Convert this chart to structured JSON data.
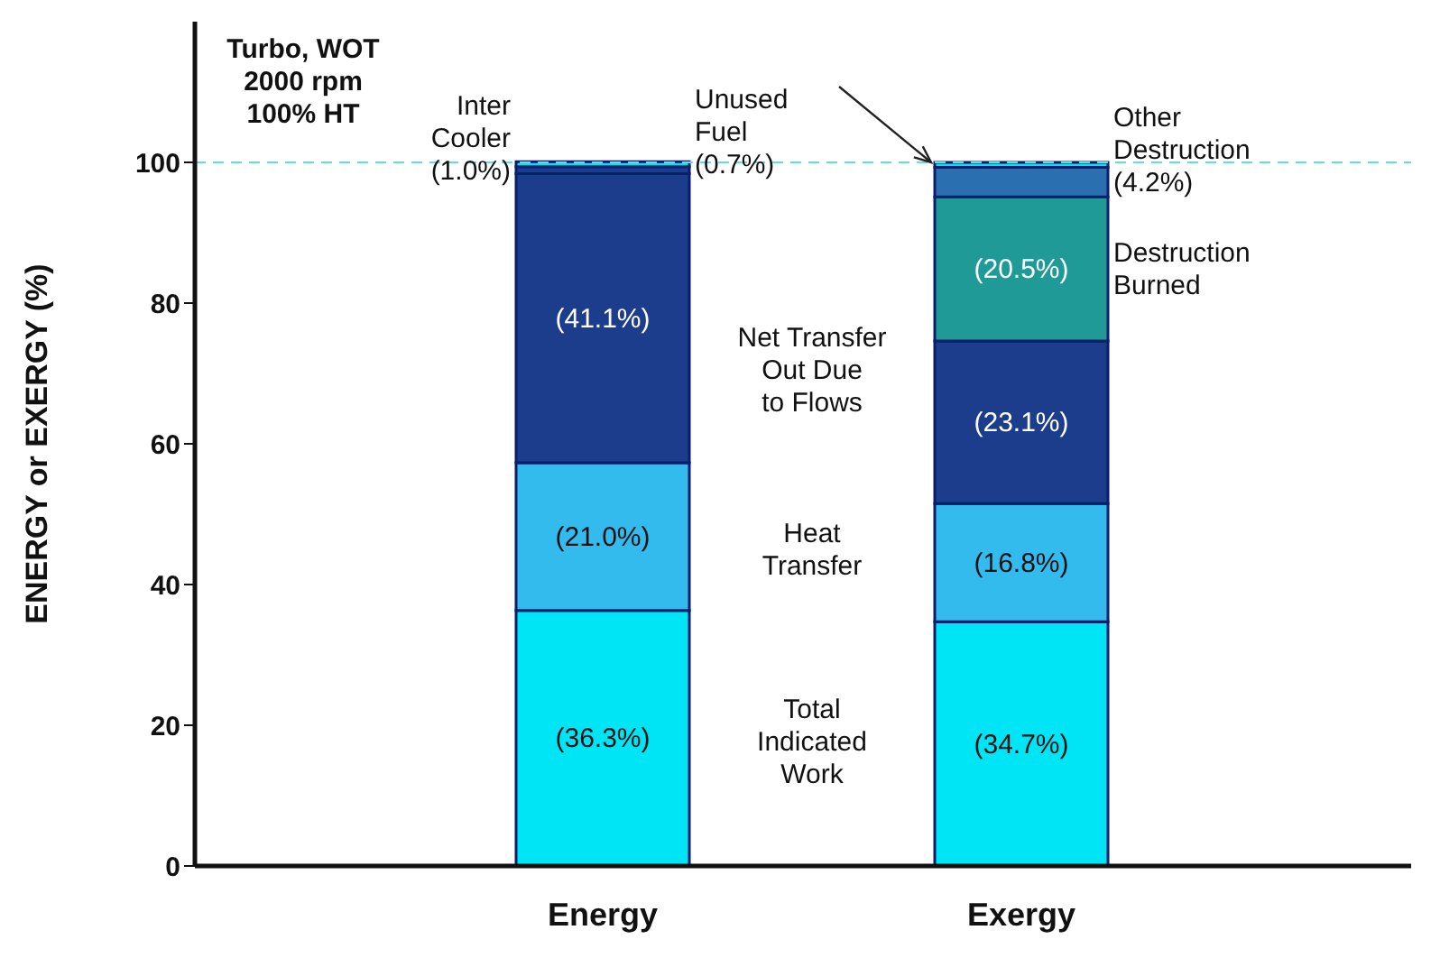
{
  "chart_data": {
    "type": "bar",
    "stacked": true,
    "ylabel": "ENERGY or EXERGY (%)",
    "categories": [
      "Energy",
      "Exergy"
    ],
    "ylim": [
      0,
      120
    ],
    "yticks": [
      0,
      20,
      40,
      60,
      80,
      100
    ],
    "series": [
      {
        "name": "Total\nIndicated\nWork",
        "color": "#00e5f5",
        "values": [
          36.3,
          34.7
        ],
        "value_labels": [
          "(36.3%)",
          "(34.7%)"
        ]
      },
      {
        "name": "Heat\nTransfer",
        "color": "#33bbee",
        "values": [
          21.0,
          16.8
        ],
        "value_labels": [
          "(21.0%)",
          "(16.8%)"
        ]
      },
      {
        "name": "Net Transfer\nOut Due\nto Flows",
        "color": "#1c3c8c",
        "values": [
          41.1,
          23.1
        ],
        "value_labels": [
          "(41.1%)",
          "(23.1%)"
        ]
      },
      {
        "name": "Inter\nCooler",
        "color": "#1c3c8c",
        "values": [
          1.0,
          null
        ]
      },
      {
        "name": "Destruction\nBurned",
        "color": "#1f9a96",
        "values": [
          null,
          20.5
        ],
        "value_labels": [
          null,
          "(20.5%)"
        ]
      },
      {
        "name": "Other\nDestruction",
        "color": "#2a6fb0",
        "values": [
          null,
          4.2
        ]
      },
      {
        "name": "Unused\nFuel",
        "color": "#00e5f5",
        "values": [
          0.7,
          0.7
        ]
      }
    ],
    "ref_lines": [
      {
        "axis": "y",
        "value": 100,
        "color": "#66dddd",
        "line_style": "dashed"
      }
    ],
    "annotations": [
      "Turbo, WOT\n2000 rpm\n100% HT",
      "(1.0%)",
      "(0.7%)",
      "(4.2%)"
    ]
  }
}
